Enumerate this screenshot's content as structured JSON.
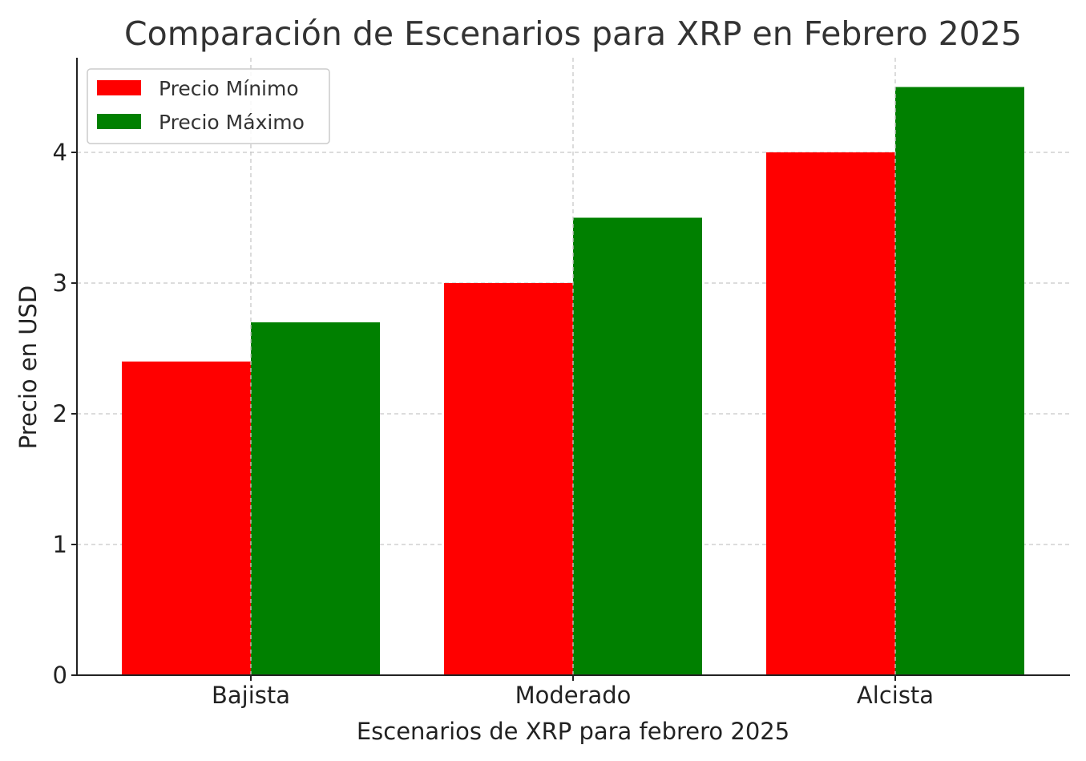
{
  "chart_data": {
    "type": "bar",
    "title": "Comparación de Escenarios para XRP en Febrero 2025",
    "xlabel": "Escenarios de XRP para febrero 2025",
    "ylabel": "Precio en USD",
    "categories": [
      "Bajista",
      "Moderado",
      "Alcista"
    ],
    "series": [
      {
        "name": "Precio Mínimo",
        "values": [
          2.4,
          3.0,
          4.0
        ],
        "color": "#ff0000"
      },
      {
        "name": "Precio Máximo",
        "values": [
          2.7,
          3.5,
          4.5
        ],
        "color": "#008000"
      }
    ],
    "ylim": [
      0,
      4.73
    ],
    "yticks": [
      0,
      1,
      2,
      3,
      4
    ],
    "grid": true,
    "legend_position": "upper-left"
  }
}
